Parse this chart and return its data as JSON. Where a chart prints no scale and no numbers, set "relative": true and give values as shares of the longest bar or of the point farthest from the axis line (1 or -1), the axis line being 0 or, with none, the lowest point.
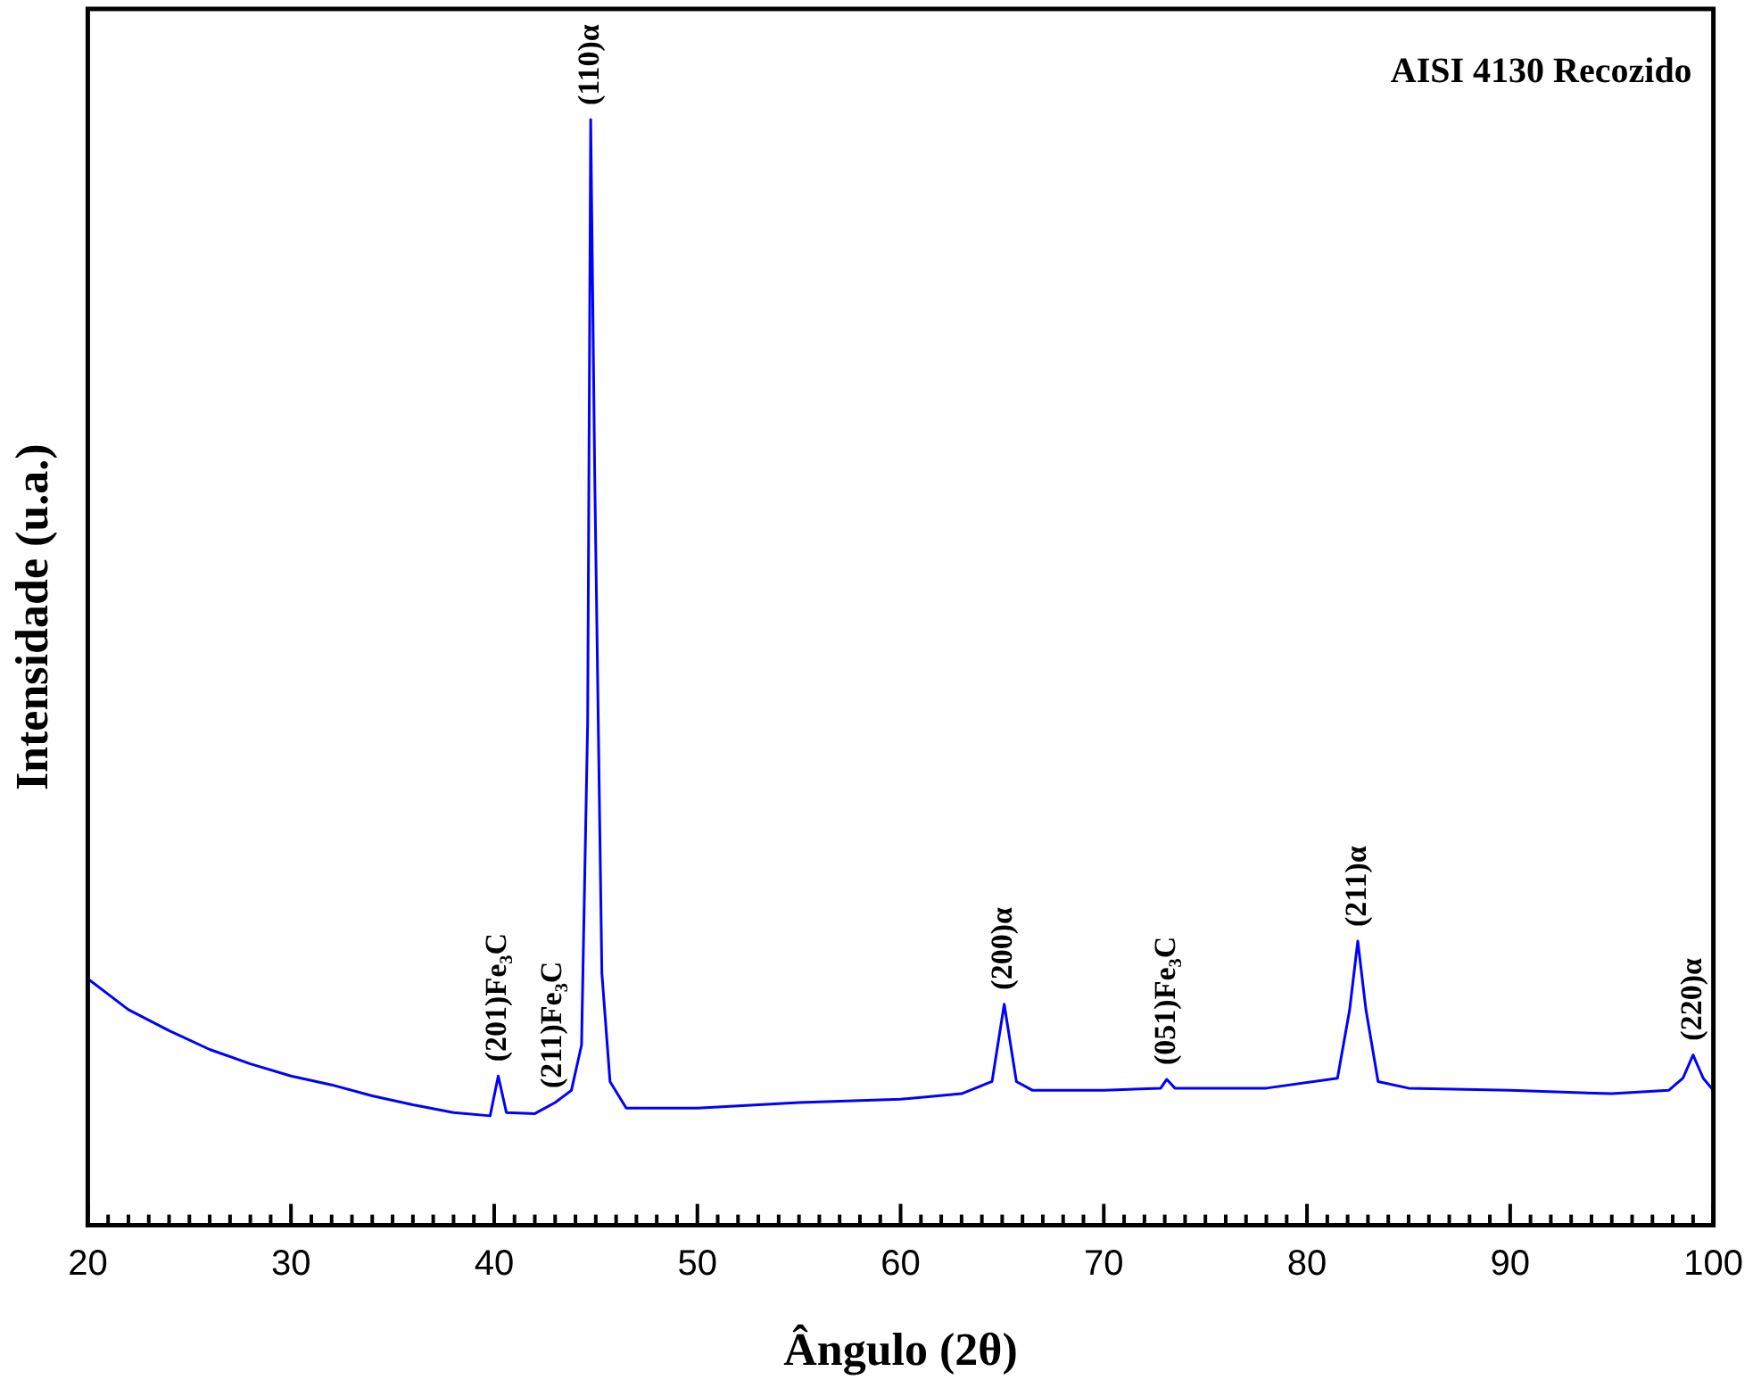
{
  "chart_data": {
    "type": "line",
    "title": "AISI 4130 Recozido",
    "xlabel": "Ângulo (2θ)",
    "ylabel": "Intensidade (u.a.)",
    "relative": true,
    "grid": false,
    "legend": false,
    "marker": "none",
    "line_style": "solid",
    "xlim": [
      20,
      100
    ],
    "xticks": [
      20,
      {
        "value": 21,
        "label": null
      },
      {
        "value": 22,
        "label": null
      },
      {
        "value": 23,
        "label": null
      },
      {
        "value": 24,
        "label": null
      },
      {
        "value": 25,
        "label": null
      },
      {
        "value": 26,
        "label": null
      },
      {
        "value": 27,
        "label": null
      },
      {
        "value": 28,
        "label": null
      },
      {
        "value": 29,
        "label": null
      },
      30,
      {
        "value": 31,
        "label": null
      },
      {
        "value": 32,
        "label": null
      },
      {
        "value": 33,
        "label": null
      },
      {
        "value": 34,
        "label": null
      },
      {
        "value": 35,
        "label": null
      },
      {
        "value": 36,
        "label": null
      },
      {
        "value": 37,
        "label": null
      },
      {
        "value": 38,
        "label": null
      },
      {
        "value": 39,
        "label": null
      },
      40,
      {
        "value": 41,
        "label": null
      },
      {
        "value": 42,
        "label": null
      },
      {
        "value": 43,
        "label": null
      },
      {
        "value": 44,
        "label": null
      },
      {
        "value": 45,
        "label": null
      },
      {
        "value": 46,
        "label": null
      },
      {
        "value": 47,
        "label": null
      },
      {
        "value": 48,
        "label": null
      },
      {
        "value": 49,
        "label": null
      },
      50,
      {
        "value": 51,
        "label": null
      },
      {
        "value": 52,
        "label": null
      },
      {
        "value": 53,
        "label": null
      },
      {
        "value": 54,
        "label": null
      },
      {
        "value": 55,
        "label": null
      },
      {
        "value": 56,
        "label": null
      },
      {
        "value": 57,
        "label": null
      },
      {
        "value": 58,
        "label": null
      },
      {
        "value": 59,
        "label": null
      },
      60,
      {
        "value": 61,
        "label": null
      },
      {
        "value": 62,
        "label": null
      },
      {
        "value": 63,
        "label": null
      },
      {
        "value": 64,
        "label": null
      },
      {
        "value": 65,
        "label": null
      },
      {
        "value": 66,
        "label": null
      },
      {
        "value": 67,
        "label": null
      },
      {
        "value": 68,
        "label": null
      },
      {
        "value": 69,
        "label": null
      },
      70,
      {
        "value": 71,
        "label": null
      },
      {
        "value": 72,
        "label": null
      },
      {
        "value": 73,
        "label": null
      },
      {
        "value": 74,
        "label": null
      },
      {
        "value": 75,
        "label": null
      },
      {
        "value": 76,
        "label": null
      },
      {
        "value": 77,
        "label": null
      },
      {
        "value": 78,
        "label": null
      },
      {
        "value": 79,
        "label": null
      },
      80,
      {
        "value": 81,
        "label": null
      },
      {
        "value": 82,
        "label": null
      },
      {
        "value": 83,
        "label": null
      },
      {
        "value": 84,
        "label": null
      },
      {
        "value": 85,
        "label": null
      },
      {
        "value": 86,
        "label": null
      },
      {
        "value": 87,
        "label": null
      },
      {
        "value": 88,
        "label": null
      },
      {
        "value": 89,
        "label": null
      },
      90,
      {
        "value": 91,
        "label": null
      },
      {
        "value": 92,
        "label": null
      },
      {
        "value": 93,
        "label": null
      },
      {
        "value": 94,
        "label": null
      },
      {
        "value": 95,
        "label": null
      },
      {
        "value": 96,
        "label": null
      },
      {
        "value": 97,
        "label": null
      },
      {
        "value": 98,
        "label": null
      },
      {
        "value": 99,
        "label": null
      },
      100
    ],
    "x": [
      20,
      22,
      24,
      26,
      28,
      30,
      32,
      34,
      36,
      38,
      39.8,
      40.2,
      40.6,
      42,
      43,
      43.8,
      44.3,
      44.6,
      44.75,
      44.95,
      45.3,
      45.7,
      46.5,
      50,
      55,
      60,
      63,
      64.5,
      65.1,
      65.7,
      66.5,
      70,
      72.8,
      73.1,
      73.5,
      78,
      81.5,
      82.1,
      82.5,
      82.9,
      83.5,
      85,
      90,
      95,
      97.8,
      98.5,
      99,
      99.5,
      100
    ],
    "series": [
      {
        "color": "#0000ff",
        "values": [
          0.223,
          0.195,
          0.176,
          0.159,
          0.146,
          0.135,
          0.127,
          0.117,
          0.109,
          0.102,
          0.099,
          0.135,
          0.102,
          0.101,
          0.111,
          0.122,
          0.163,
          0.455,
          1,
          0.675,
          0.228,
          0.13,
          0.106,
          0.106,
          0.111,
          0.114,
          0.119,
          0.13,
          0.2,
          0.13,
          0.122,
          0.122,
          0.124,
          0.132,
          0.124,
          0.124,
          0.133,
          0.195,
          0.257,
          0.195,
          0.13,
          0.124,
          0.122,
          0.119,
          0.122,
          0.133,
          0.154,
          0.133,
          0.122
        ]
      }
    ],
    "annotations": [
      {
        "text": "(201)Fe₃C",
        "x": 40.2,
        "y": 0.135
      },
      {
        "text": "(211)Fe₃C",
        "x": 42.9,
        "y": 0.111
      },
      {
        "text": "(110)α",
        "x": 44.75,
        "y": 1
      },
      {
        "text": "(200)α",
        "x": 65.1,
        "y": 0.2
      },
      {
        "text": "(051)Fe₃C",
        "x": 73.1,
        "y": 0.132
      },
      {
        "text": "(211)α",
        "x": 82.5,
        "y": 0.257
      },
      {
        "text": "(220)α",
        "x": 99,
        "y": 0.154
      }
    ]
  }
}
